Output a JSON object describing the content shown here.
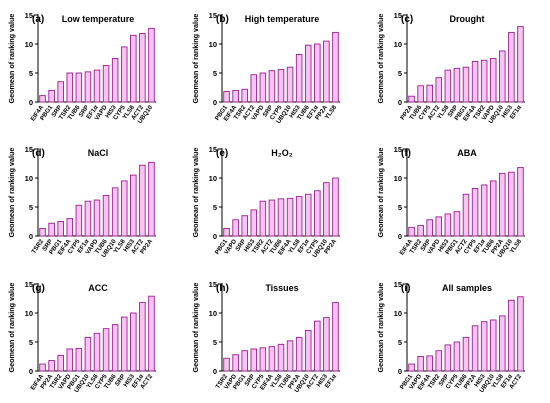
{
  "figure": {
    "bar_fill": "#f9c2f4",
    "bar_stroke": "#9b1f8e",
    "axis_color": "#000000"
  },
  "chart_data": [
    {
      "type": "bar",
      "panel": "(a)",
      "title": "Low temperature",
      "ylabel": "Geomean of ranking value",
      "ylim": [
        0,
        15
      ],
      "yticks": [
        0,
        5,
        10,
        15
      ],
      "categories": [
        "EIF4A",
        "PBG1",
        "SRP",
        "TSR2",
        "TUB6",
        "SRP",
        "EF1α",
        "VAPD",
        "HIS3",
        "CYP5",
        "YLS8",
        "ACT2",
        "UBQ10"
      ],
      "values": [
        1.1,
        2.0,
        3.5,
        5.0,
        5.0,
        5.2,
        5.5,
        6.3,
        7.5,
        9.5,
        11.5,
        11.8,
        12.7
      ]
    },
    {
      "type": "bar",
      "panel": "(b)",
      "title": "High temperature",
      "ylabel": "Geomean of ranking value",
      "ylim": [
        0,
        15
      ],
      "yticks": [
        0,
        5,
        10,
        15
      ],
      "categories": [
        "PBG1",
        "EIF4A",
        "TSR2",
        "ACT2",
        "VAPD",
        "SRP",
        "CYP5",
        "UBQ10",
        "HIS3",
        "TUB6",
        "EF1α",
        "PP2A",
        "YLS8"
      ],
      "values": [
        1.8,
        2.0,
        2.2,
        4.7,
        5.0,
        5.4,
        5.6,
        6.0,
        8.2,
        9.8,
        10.0,
        10.5,
        12.0
      ]
    },
    {
      "type": "bar",
      "panel": "(c)",
      "title": "Drought",
      "ylabel": "Geomean of ranking value",
      "ylim": [
        0,
        15
      ],
      "yticks": [
        0,
        5,
        10,
        15
      ],
      "categories": [
        "PP2A",
        "TUB6",
        "CYP5",
        "ACT2",
        "YLS8",
        "SRP",
        "PBG1",
        "EIF4A",
        "TSR2",
        "VAPD",
        "UBQ10",
        "HIS3",
        "EF1α"
      ],
      "values": [
        1.0,
        2.8,
        2.9,
        4.2,
        5.5,
        5.8,
        6.0,
        7.0,
        7.2,
        7.5,
        8.8,
        12.0,
        13.0
      ]
    },
    {
      "type": "bar",
      "panel": "(d)",
      "title": "NaCl",
      "ylabel": "Geomean of ranking value",
      "ylim": [
        0,
        15
      ],
      "yticks": [
        0,
        5,
        10,
        15
      ],
      "categories": [
        "TSR2",
        "SRP",
        "PBG1",
        "EIF4A",
        "CYP5",
        "EF1α",
        "VAPD",
        "TUB6",
        "UBQ10",
        "YLS8",
        "HIS3",
        "ACT2",
        "PP2A"
      ],
      "values": [
        1.3,
        2.2,
        2.5,
        3.0,
        5.3,
        6.0,
        6.2,
        7.0,
        8.3,
        9.5,
        10.5,
        12.2,
        12.7
      ]
    },
    {
      "type": "bar",
      "panel": "(e)",
      "title": "H₂O₂",
      "ylabel": "Geomean of ranking value",
      "ylim": [
        0,
        15
      ],
      "yticks": [
        0,
        5,
        10,
        15
      ],
      "categories": [
        "PBG1",
        "VAPD",
        "SRP",
        "HIS3",
        "TSR2",
        "ACT2",
        "TUB6",
        "EIF4A",
        "YLS8",
        "EF1α",
        "CYP5",
        "UBQ10",
        "PP2A"
      ],
      "values": [
        1.3,
        2.8,
        3.5,
        4.5,
        6.0,
        6.2,
        6.4,
        6.5,
        6.8,
        7.2,
        7.8,
        9.2,
        10.0
      ]
    },
    {
      "type": "bar",
      "panel": "(f)",
      "title": "ABA",
      "ylabel": "Geomean of ranking value",
      "ylim": [
        0,
        15
      ],
      "yticks": [
        0,
        5,
        10,
        15
      ],
      "categories": [
        "EIF4A",
        "TSR2",
        "SRP",
        "VAPD",
        "HIS3",
        "PBG1",
        "ACT2",
        "CYP5",
        "EF1α",
        "TUB6",
        "PP2A",
        "UBQ10",
        "YLS8"
      ],
      "values": [
        1.5,
        1.8,
        2.8,
        3.3,
        3.8,
        4.2,
        7.2,
        8.2,
        8.8,
        9.5,
        10.8,
        11.0,
        11.8
      ]
    },
    {
      "type": "bar",
      "panel": "(g)",
      "title": "ACC",
      "ylabel": "Geomean of ranking value",
      "ylim": [
        0,
        15
      ],
      "yticks": [
        0,
        5,
        10,
        15
      ],
      "categories": [
        "EIF4A",
        "PP2A",
        "TSR2",
        "VAPD",
        "PBG1",
        "UBQ10",
        "YLS8",
        "CYP5",
        "TUB6",
        "SRP",
        "HIS3",
        "EF1α",
        "ACT2"
      ],
      "values": [
        1.2,
        1.8,
        2.7,
        3.8,
        3.9,
        5.8,
        6.5,
        7.3,
        8.0,
        9.3,
        10.0,
        11.8,
        12.9
      ]
    },
    {
      "type": "bar",
      "panel": "(h)",
      "title": "Tissues",
      "ylabel": "Geomean of ranking value",
      "ylim": [
        0,
        15
      ],
      "yticks": [
        0,
        5,
        10,
        15
      ],
      "categories": [
        "TSR2",
        "VAPD",
        "PBG1",
        "SRP",
        "CYP5",
        "EIF4A",
        "YLS8",
        "TUB6",
        "PP2A",
        "UBQ10",
        "ACT2",
        "HIS3",
        "EF1α"
      ],
      "values": [
        2.2,
        2.8,
        3.5,
        3.8,
        4.0,
        4.2,
        4.6,
        5.2,
        5.8,
        7.0,
        8.6,
        9.2,
        11.8
      ]
    },
    {
      "type": "bar",
      "panel": "(i)",
      "title": "All samples",
      "ylabel": "Geomean of ranking value",
      "ylim": [
        0,
        15
      ],
      "yticks": [
        0,
        5,
        10,
        15
      ],
      "categories": [
        "PBG1",
        "VAPD",
        "EIF4A",
        "TSR2",
        "SRP",
        "CYP5",
        "TUB6",
        "PP2A",
        "HIS3",
        "UBQ10",
        "YLS8",
        "EF1α",
        "ACT2"
      ],
      "values": [
        1.2,
        2.5,
        2.6,
        3.5,
        4.5,
        5.0,
        5.8,
        7.8,
        8.5,
        8.8,
        9.5,
        12.2,
        12.8
      ]
    }
  ]
}
